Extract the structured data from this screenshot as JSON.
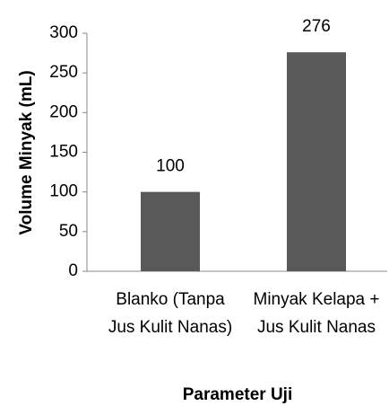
{
  "chart_data": {
    "type": "bar",
    "categories": [
      "Blanko (Tanpa Jus Kulit Nanas)",
      "Minyak Kelapa + Jus Kulit Nanas"
    ],
    "values": [
      100,
      276
    ],
    "color": "#595959",
    "ylim": [
      0,
      300
    ],
    "yticks": [
      0,
      50,
      100,
      150,
      200,
      250,
      300
    ],
    "xlabel": "Parameter Uji",
    "ylabel": "Volume Minyak (mL)",
    "grid": false
  }
}
